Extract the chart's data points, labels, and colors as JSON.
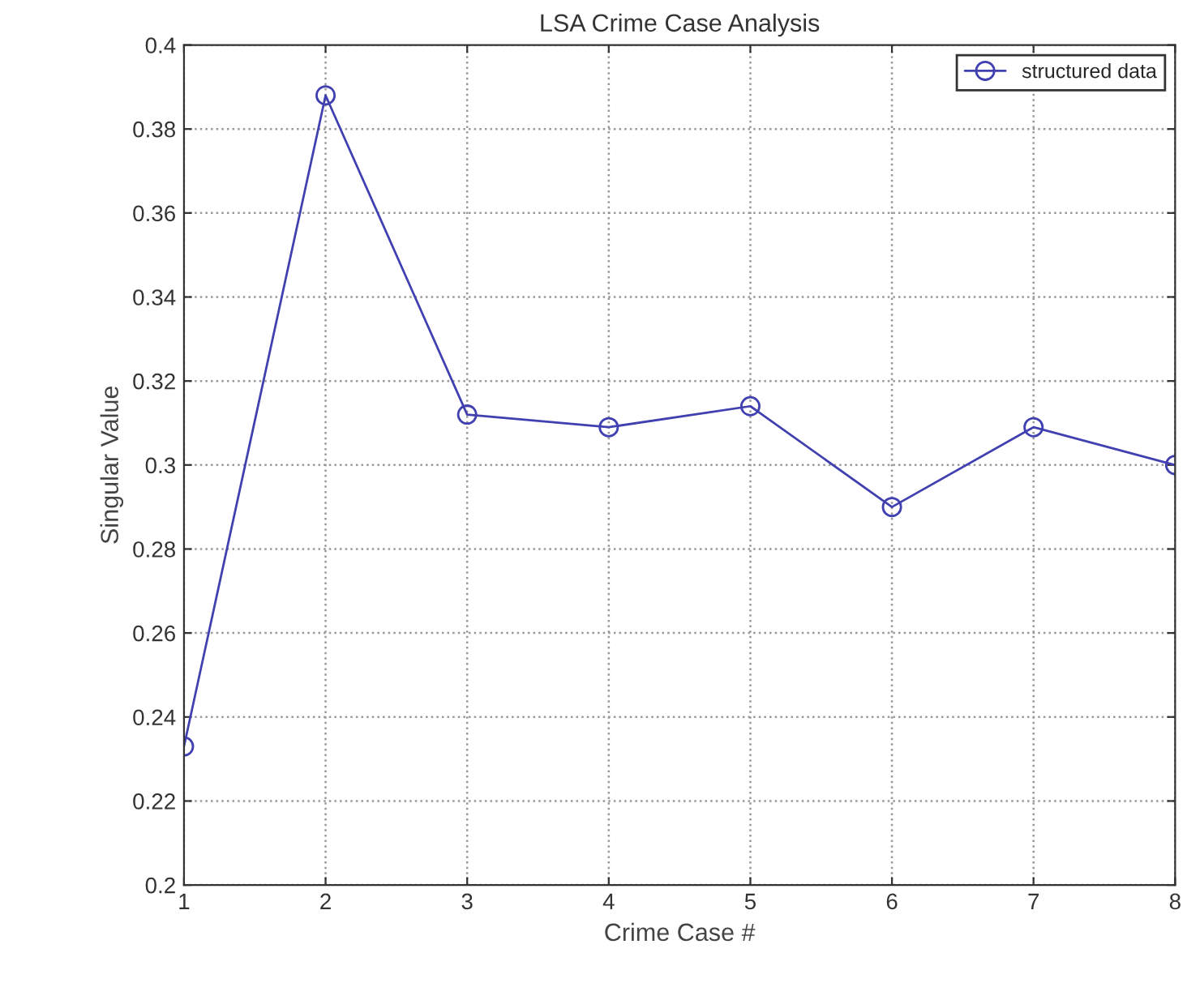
{
  "chart_data": {
    "type": "line",
    "title": "LSA Crime Case Analysis",
    "xlabel": "Crime Case #",
    "ylabel": "Singular Value",
    "x": [
      1,
      2,
      3,
      4,
      5,
      6,
      7,
      8
    ],
    "series": [
      {
        "name": "structured data",
        "color": "#4040b0",
        "values": [
          0.233,
          0.388,
          0.312,
          0.309,
          0.314,
          0.29,
          0.309,
          0.3
        ]
      }
    ],
    "xlim": [
      1,
      8
    ],
    "xticks": [
      1,
      2,
      3,
      4,
      5,
      6,
      7,
      8
    ],
    "ylim": [
      0.2,
      0.4
    ],
    "yticks": [
      {
        "value": 0.2,
        "label": "0.2"
      },
      {
        "value": 0.22,
        "label": "0.22"
      },
      {
        "value": 0.24,
        "label": "0.24"
      },
      {
        "value": 0.26,
        "label": "0.26"
      },
      {
        "value": 0.28,
        "label": "0.28"
      },
      {
        "value": 0.3,
        "label": "0.3"
      },
      {
        "value": 0.32,
        "label": "0.32"
      },
      {
        "value": 0.34,
        "label": "0.34"
      },
      {
        "value": 0.36,
        "label": "0.36"
      },
      {
        "value": 0.38,
        "label": "0.38"
      },
      {
        "value": 0.4,
        "label": "0.4"
      }
    ],
    "grid": true,
    "legend": "top right",
    "marker": "circle",
    "line_style": "solid"
  }
}
